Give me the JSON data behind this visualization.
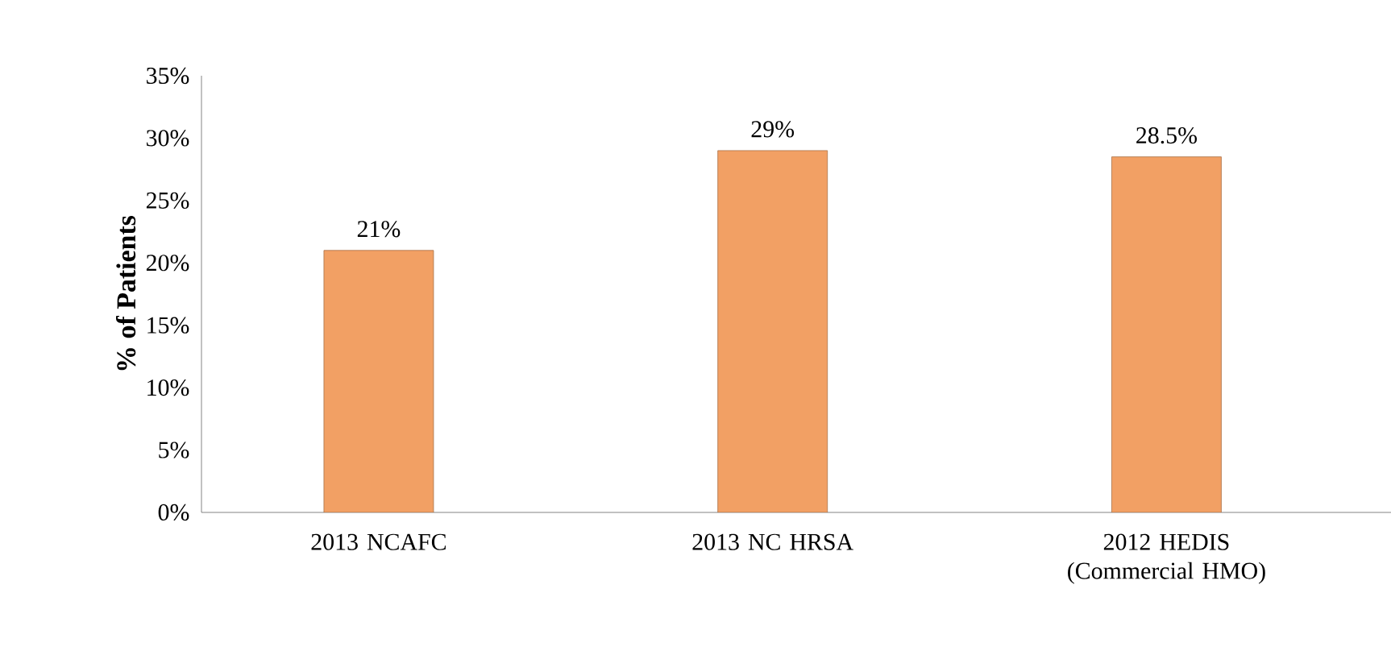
{
  "chart_data": {
    "type": "bar",
    "ylabel": "% of Patients",
    "categories": [
      "2013 NCAFC",
      "2013 NC HRSA",
      "2012 HEDIS (Commercial HMO)"
    ],
    "values": [
      21,
      29,
      28.5
    ],
    "color": "#f2a064",
    "value_labels": [
      "21%",
      "29%",
      "28.5%"
    ],
    "ylim": [
      0,
      35
    ],
    "yticks": [
      {
        "value": 0,
        "label": "0%"
      },
      {
        "value": 5,
        "label": "5%"
      },
      {
        "value": 10,
        "label": "10%"
      },
      {
        "value": 15,
        "label": "15%"
      },
      {
        "value": 20,
        "label": "20%"
      },
      {
        "value": 25,
        "label": "25%"
      },
      {
        "value": 30,
        "label": "30%"
      },
      {
        "value": 35,
        "label": "35%"
      }
    ],
    "grid": false
  }
}
